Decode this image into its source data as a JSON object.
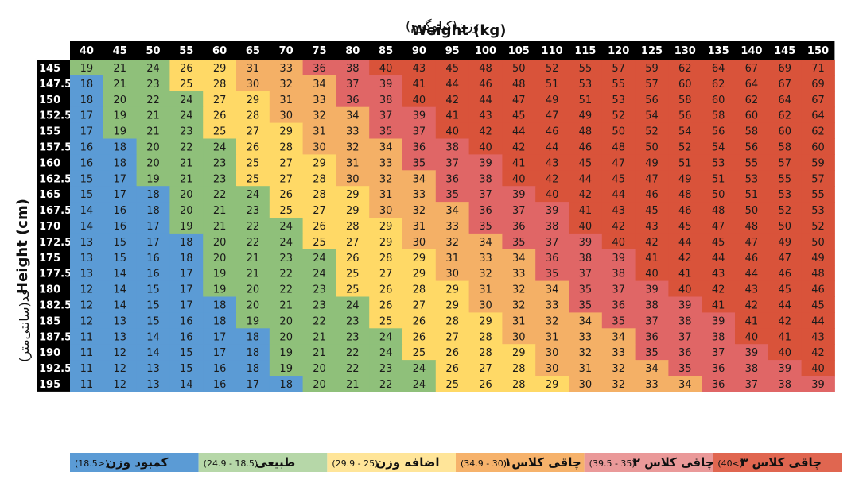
{
  "chart_data": {
    "type": "heatmap",
    "title_fa": "وزن(کیلوگرم)",
    "title_en": "Weight (kg)",
    "ylabel_en": "Height (cm)",
    "ylabel_fa": "قد(سانتی‌متر)",
    "weights": [
      40,
      45,
      50,
      55,
      60,
      65,
      70,
      75,
      80,
      85,
      90,
      95,
      100,
      105,
      110,
      115,
      120,
      125,
      130,
      135,
      140,
      145,
      150
    ],
    "heights": [
      "145",
      "147.5",
      "150",
      "152.5",
      "155",
      "157.5",
      "160",
      "162.5",
      "165",
      "167.5",
      "170",
      "172.5",
      "175",
      "177.5",
      "180",
      "182.5",
      "185",
      "187.5",
      "190",
      "192.5",
      "195"
    ],
    "bmi": [
      [
        19,
        21,
        24,
        26,
        29,
        31,
        33,
        36,
        38,
        40,
        43,
        45,
        48,
        50,
        52,
        55,
        57,
        59,
        62,
        64,
        67,
        69,
        71
      ],
      [
        18,
        21,
        23,
        25,
        28,
        30,
        32,
        34,
        37,
        39,
        41,
        44,
        46,
        48,
        51,
        53,
        55,
        57,
        60,
        62,
        64,
        67,
        69
      ],
      [
        18,
        20,
        22,
        24,
        27,
        29,
        31,
        33,
        36,
        38,
        40,
        42,
        44,
        47,
        49,
        51,
        53,
        56,
        58,
        60,
        62,
        64,
        67
      ],
      [
        17,
        19,
        21,
        24,
        26,
        28,
        30,
        32,
        34,
        37,
        39,
        41,
        43,
        45,
        47,
        49,
        52,
        54,
        56,
        58,
        60,
        62,
        64
      ],
      [
        17,
        19,
        21,
        23,
        25,
        27,
        29,
        31,
        33,
        35,
        37,
        40,
        42,
        44,
        46,
        48,
        50,
        52,
        54,
        56,
        58,
        60,
        62
      ],
      [
        16,
        18,
        20,
        22,
        24,
        26,
        28,
        30,
        32,
        34,
        36,
        38,
        40,
        42,
        44,
        46,
        48,
        50,
        52,
        54,
        56,
        58,
        60
      ],
      [
        16,
        18,
        20,
        21,
        23,
        25,
        27,
        29,
        31,
        33,
        35,
        37,
        39,
        41,
        43,
        45,
        47,
        49,
        51,
        53,
        55,
        57,
        59
      ],
      [
        15,
        17,
        19,
        21,
        23,
        25,
        27,
        28,
        30,
        32,
        34,
        36,
        38,
        40,
        42,
        44,
        45,
        47,
        49,
        51,
        53,
        55,
        57
      ],
      [
        15,
        17,
        18,
        20,
        22,
        24,
        26,
        28,
        29,
        31,
        33,
        35,
        37,
        39,
        40,
        42,
        44,
        46,
        48,
        50,
        51,
        53,
        55
      ],
      [
        14,
        16,
        18,
        20,
        21,
        23,
        25,
        27,
        29,
        30,
        32,
        34,
        36,
        37,
        39,
        41,
        43,
        45,
        46,
        48,
        50,
        52,
        53
      ],
      [
        14,
        16,
        17,
        19,
        21,
        22,
        24,
        26,
        28,
        29,
        31,
        33,
        35,
        36,
        38,
        40,
        42,
        43,
        45,
        47,
        48,
        50,
        52
      ],
      [
        13,
        15,
        17,
        18,
        20,
        22,
        24,
        25,
        27,
        29,
        30,
        32,
        34,
        35,
        37,
        39,
        40,
        42,
        44,
        45,
        47,
        49,
        50
      ],
      [
        13,
        15,
        16,
        18,
        20,
        21,
        23,
        24,
        26,
        28,
        29,
        31,
        33,
        34,
        36,
        38,
        39,
        41,
        42,
        44,
        46,
        47,
        49
      ],
      [
        13,
        14,
        16,
        17,
        19,
        21,
        22,
        24,
        25,
        27,
        29,
        30,
        32,
        33,
        35,
        37,
        38,
        40,
        41,
        43,
        44,
        46,
        48
      ],
      [
        12,
        14,
        15,
        17,
        19,
        20,
        22,
        23,
        25,
        26,
        28,
        29,
        31,
        32,
        34,
        35,
        37,
        39,
        40,
        42,
        43,
        45,
        46
      ],
      [
        12,
        14,
        15,
        17,
        18,
        20,
        21,
        23,
        24,
        26,
        27,
        29,
        30,
        32,
        33,
        35,
        36,
        38,
        39,
        41,
        42,
        44,
        45
      ],
      [
        12,
        13,
        15,
        16,
        18,
        19,
        20,
        22,
        23,
        25,
        26,
        28,
        29,
        31,
        32,
        34,
        35,
        37,
        38,
        39,
        41,
        42,
        44
      ],
      [
        11,
        13,
        14,
        16,
        17,
        18,
        20,
        21,
        23,
        24,
        26,
        27,
        28,
        30,
        31,
        33,
        34,
        36,
        37,
        38,
        40,
        41,
        43
      ],
      [
        11,
        12,
        14,
        15,
        17,
        18,
        19,
        21,
        22,
        24,
        25,
        26,
        28,
        29,
        30,
        32,
        33,
        35,
        36,
        37,
        39,
        40,
        42
      ],
      [
        11,
        12,
        13,
        15,
        16,
        18,
        19,
        20,
        22,
        23,
        24,
        26,
        27,
        28,
        30,
        31,
        32,
        34,
        35,
        36,
        38,
        39,
        40
      ],
      [
        11,
        12,
        13,
        14,
        16,
        17,
        18,
        20,
        21,
        22,
        24,
        25,
        26,
        28,
        29,
        30,
        32,
        33,
        34,
        36,
        37,
        38,
        39
      ]
    ],
    "categories": [
      {
        "label": "کمبود وزن",
        "range": "(<18.5)",
        "color": "#5b9bd5",
        "min": 0,
        "max": 18.5
      },
      {
        "label": "طبیعی",
        "range": "(18.5 - 24.9)",
        "color": "#8fc07a",
        "min": 18.5,
        "max": 25
      },
      {
        "label": "اضافه وزن",
        "range": "(25 - 29.9)",
        "color": "#ffd966",
        "min": 25,
        "max": 30
      },
      {
        "label": "چاقی کلاس۱",
        "range": "(30 - 34.9)",
        "color": "#f4b066",
        "min": 30,
        "max": 35
      },
      {
        "label": "چاقی کلاس ۲",
        "range": "(35 - 39.5)",
        "color": "#e06666",
        "min": 35,
        "max": 40
      },
      {
        "label": "چاقی کلاس ۳",
        "range": "(>40)",
        "color": "#d9533a",
        "min": 40,
        "max": 1000
      }
    ],
    "legend_background": [
      "#5b9bd5",
      "#b6d7a8",
      "#ffe599",
      "#f6b26b",
      "#ea9999",
      "#e06650"
    ],
    "header_color": "#000000"
  }
}
